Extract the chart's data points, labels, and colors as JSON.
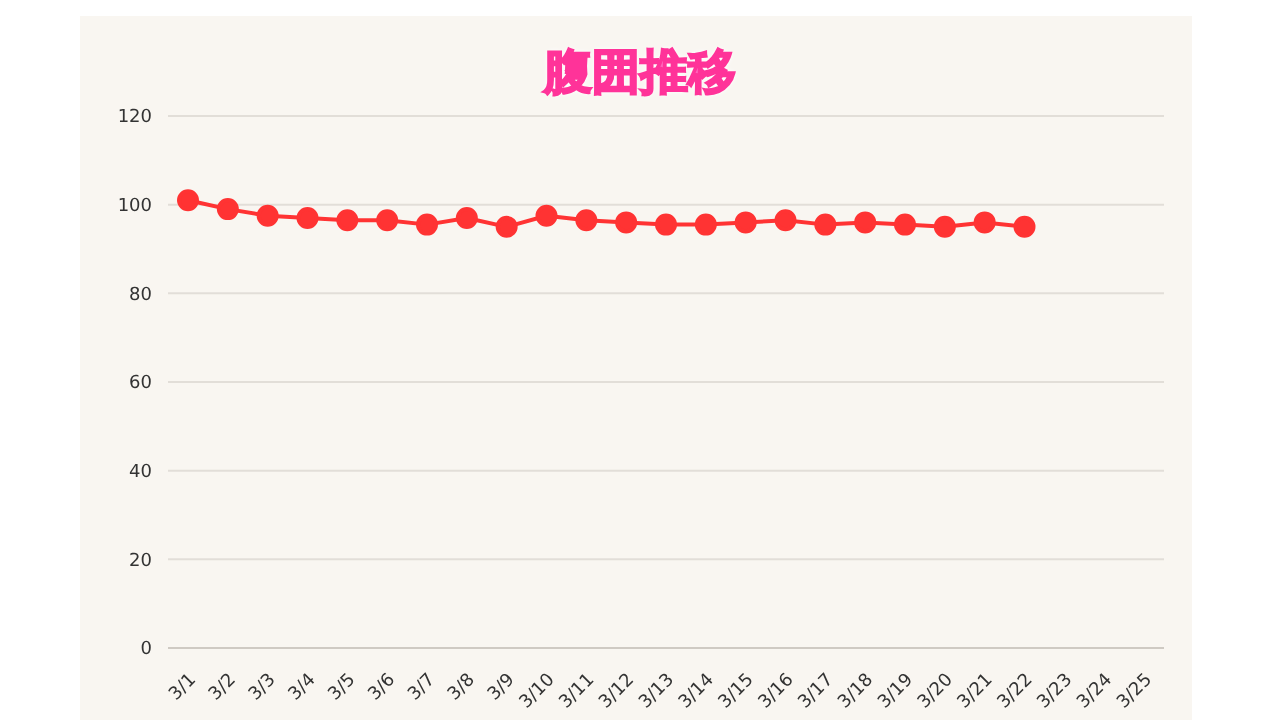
{
  "chart_data": {
    "type": "line",
    "title": "腹囲推移",
    "categories": [
      "3/1",
      "3/2",
      "3/3",
      "3/4",
      "3/5",
      "3/6",
      "3/7",
      "3/8",
      "3/9",
      "3/10",
      "3/11",
      "3/12",
      "3/13",
      "3/14",
      "3/15",
      "3/16",
      "3/17",
      "3/18",
      "3/19",
      "3/20",
      "3/21",
      "3/22",
      "3/23",
      "3/24",
      "3/25"
    ],
    "series": [
      {
        "color": "#ff3333",
        "values": [
          101,
          99,
          97.5,
          97,
          96.5,
          96.5,
          95.5,
          97,
          95,
          97.5,
          96.5,
          96,
          95.5,
          95.5,
          96,
          96.5,
          95.5,
          96,
          95.5,
          95,
          96,
          95,
          null,
          null,
          null
        ]
      }
    ],
    "ylim": [
      0,
      120
    ],
    "yticks": [
      0,
      20,
      40,
      60,
      80,
      100,
      120
    ],
    "grid": "y",
    "marker": "circle"
  }
}
